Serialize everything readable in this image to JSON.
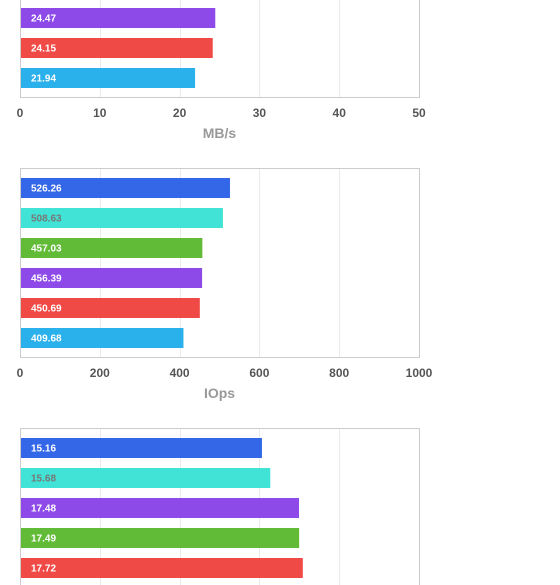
{
  "chart_data": [
    {
      "type": "bar",
      "orientation": "horizontal",
      "xlabel": "MB/s",
      "xlim": [
        0,
        50
      ],
      "ticks": [
        0,
        10,
        20,
        30,
        40,
        50
      ],
      "grid": true,
      "bars": [
        {
          "value": 24.47,
          "color": "#8e4ae8",
          "label_color": "#ffffff"
        },
        {
          "value": 24.15,
          "color": "#f04a46",
          "label_color": "#ffffff"
        },
        {
          "value": 21.94,
          "color": "#2ab0ea",
          "label_color": "#ffffff"
        }
      ]
    },
    {
      "type": "bar",
      "orientation": "horizontal",
      "xlabel": "IOps",
      "xlim": [
        0,
        1000
      ],
      "ticks": [
        0,
        200,
        400,
        600,
        800,
        1000
      ],
      "grid": true,
      "bars": [
        {
          "value": 526.26,
          "color": "#3367e8",
          "label_color": "#ffffff"
        },
        {
          "value": 508.63,
          "color": "#40e3d6",
          "label_color": "#777777"
        },
        {
          "value": 457.03,
          "color": "#62bb37",
          "label_color": "#ffffff"
        },
        {
          "value": 456.39,
          "color": "#8e4ae8",
          "label_color": "#ffffff"
        },
        {
          "value": 450.69,
          "color": "#f04a46",
          "label_color": "#ffffff"
        },
        {
          "value": 409.68,
          "color": "#2ab0ea",
          "label_color": "#ffffff"
        }
      ]
    },
    {
      "type": "bar",
      "orientation": "horizontal",
      "xlabel": "",
      "xlim": [
        0,
        25
      ],
      "ticks": [],
      "grid": true,
      "bars": [
        {
          "value": 15.16,
          "color": "#3367e8",
          "label_color": "#ffffff"
        },
        {
          "value": 15.68,
          "color": "#40e3d6",
          "label_color": "#777777"
        },
        {
          "value": 17.48,
          "color": "#8e4ae8",
          "label_color": "#ffffff"
        },
        {
          "value": 17.49,
          "color": "#62bb37",
          "label_color": "#ffffff"
        },
        {
          "value": 17.72,
          "color": "#f04a46",
          "label_color": "#ffffff"
        }
      ]
    }
  ]
}
